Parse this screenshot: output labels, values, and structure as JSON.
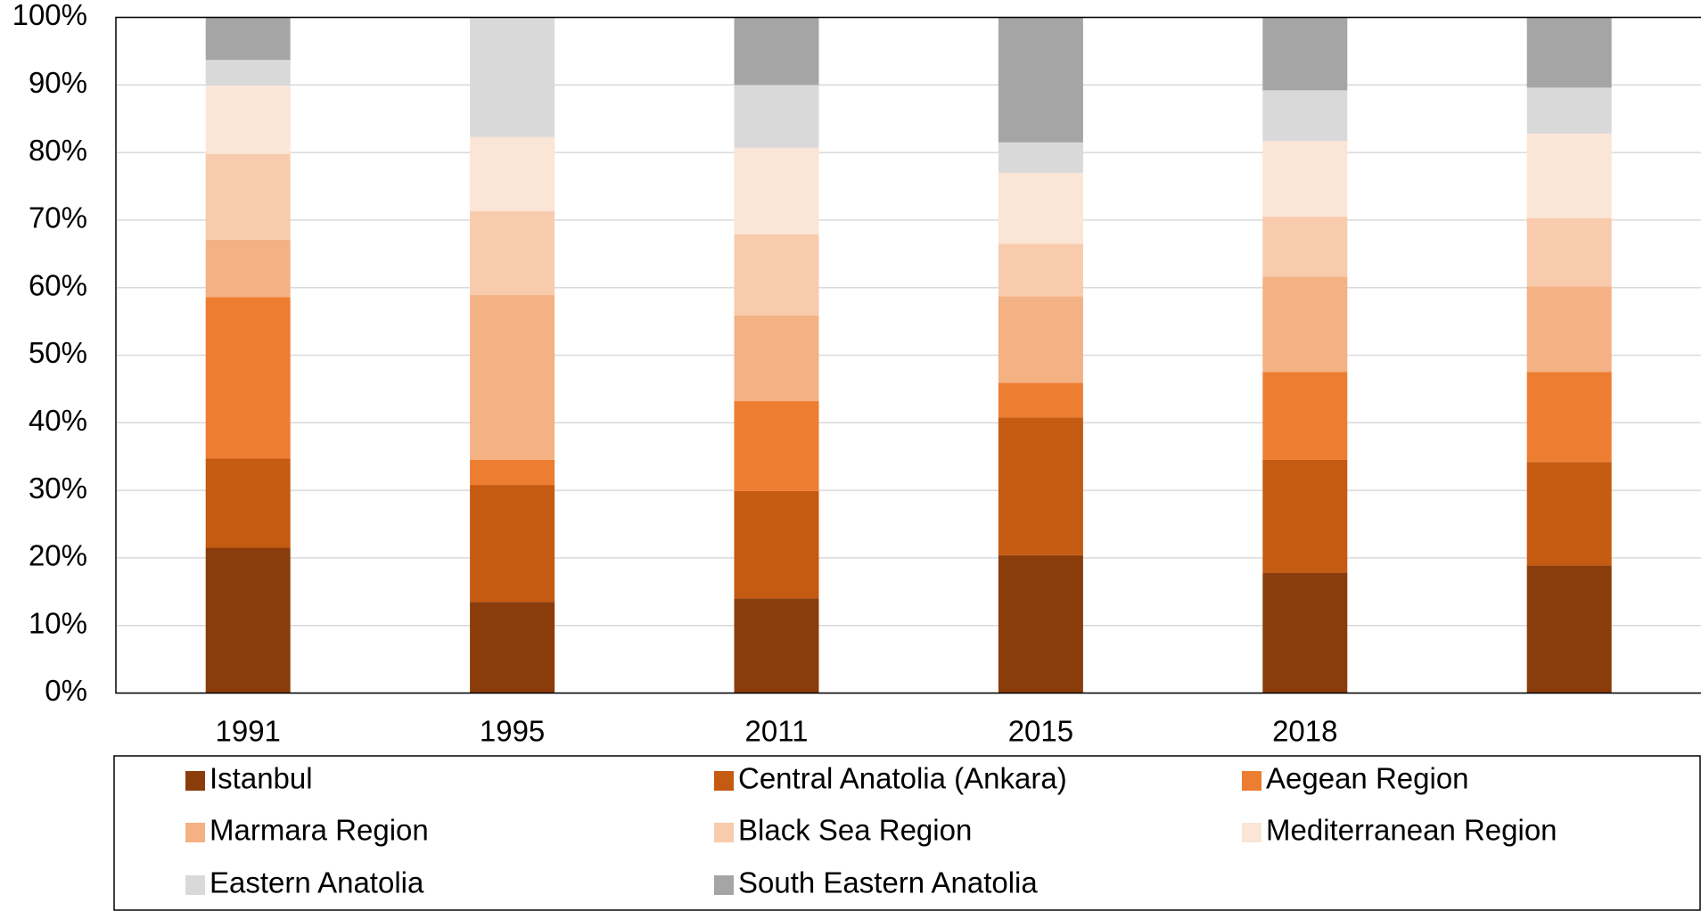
{
  "chart_data": {
    "type": "stacked_bar",
    "categories": [
      "1991",
      "1995",
      "2011",
      "2015",
      "2018",
      null
    ],
    "series": [
      {
        "name": "Istanbul",
        "color": "#8b3c0b",
        "values": [
          21.5,
          13.5,
          14.0,
          20.4,
          17.8,
          18.9
        ]
      },
      {
        "name": "Central Anatolia (Ankara)",
        "color": "#c55a11",
        "values": [
          13.2,
          17.3,
          15.9,
          20.4,
          16.7,
          15.3
        ]
      },
      {
        "name": "Aegean Region",
        "color": "#ed7d31",
        "values": [
          23.9,
          3.7,
          13.3,
          5.1,
          13.0,
          13.3
        ]
      },
      {
        "name": "Marmara Region",
        "color": "#f4b183",
        "values": [
          8.5,
          24.4,
          12.7,
          12.8,
          14.1,
          12.7
        ]
      },
      {
        "name": "Black Sea Region",
        "color": "#f8cbad",
        "values": [
          12.7,
          12.4,
          12.0,
          7.8,
          8.9,
          10.1
        ]
      },
      {
        "name": "Mediterranean Region",
        "color": "#fbe5d6",
        "values": [
          10.1,
          11.0,
          12.8,
          10.5,
          11.2,
          12.5
        ]
      },
      {
        "name": "Eastern Anatolia",
        "color": "#d9d9d9",
        "values": [
          3.8,
          17.7,
          9.3,
          4.5,
          7.5,
          6.8
        ]
      },
      {
        "name": "South Eastern Anatolia",
        "color": "#a5a5a5",
        "values": [
          6.3,
          0,
          10.0,
          18.5,
          10.8,
          10.4
        ]
      }
    ],
    "ylim": [
      0,
      100
    ],
    "yticks": [
      {
        "value": 0,
        "label": "0%"
      },
      {
        "value": 10,
        "label": "10%"
      },
      {
        "value": 20,
        "label": "20%"
      },
      {
        "value": 30,
        "label": "30%"
      },
      {
        "value": 40,
        "label": "40%"
      },
      {
        "value": 50,
        "label": "50%"
      },
      {
        "value": 60,
        "label": "60%"
      },
      {
        "value": 70,
        "label": "70%"
      },
      {
        "value": 80,
        "label": "80%"
      },
      {
        "value": 90,
        "label": "90%"
      },
      {
        "value": 100,
        "label": "100%"
      }
    ],
    "grid": true,
    "legend": "bottom"
  }
}
